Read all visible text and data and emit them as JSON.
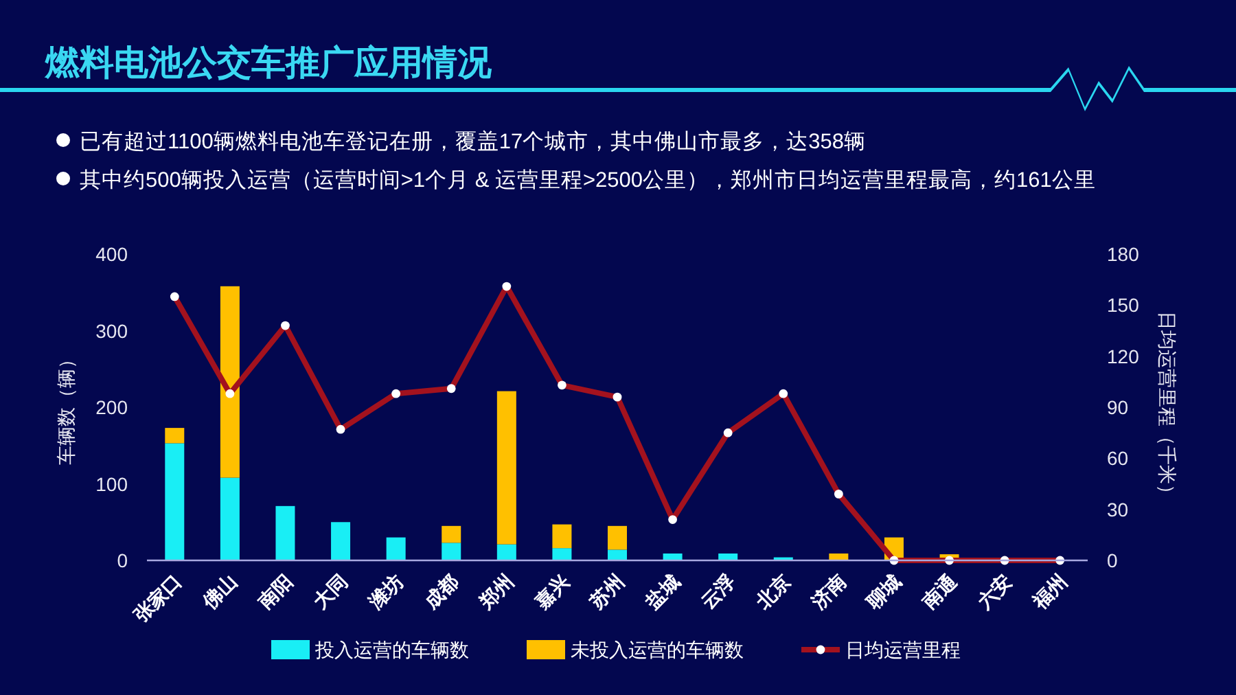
{
  "chart_data": {
    "type": "bar",
    "title": "燃料电池公交车推广应用情况",
    "annotations": [
      "已有超过1100辆燃料电池车登记在册，覆盖17个城市，其中佛山市最多，达358辆",
      "其中约500辆投入运营（运营时间>1个月 & 运营里程>2500公里），郑州市日均运营里程最高，约161公里"
    ],
    "categories": [
      "张家口",
      "佛山",
      "南阳",
      "大同",
      "潍坊",
      "成都",
      "郑州",
      "嘉兴",
      "苏州",
      "盐城",
      "云浮",
      "北京",
      "济南",
      "聊城",
      "南通",
      "六安",
      "福州"
    ],
    "series": [
      {
        "name": "投入运营的车辆数",
        "color": "#19eef5",
        "values": [
          153,
          108,
          71,
          50,
          30,
          23,
          21,
          16,
          14,
          9,
          9,
          4,
          0,
          0,
          0,
          0,
          0
        ]
      },
      {
        "name": "未投入运营的车辆数",
        "color": "#ffc000",
        "values": [
          20,
          250,
          0,
          0,
          0,
          22,
          200,
          31,
          31,
          0,
          0,
          0,
          9,
          30,
          8,
          0,
          0
        ]
      },
      {
        "name": "日均运营里程",
        "type": "line",
        "axis": "y2",
        "color": "#a3121e",
        "values": [
          155,
          98,
          138,
          77,
          98,
          101,
          161,
          103,
          96,
          24,
          75,
          98,
          39,
          0,
          0,
          0,
          0
        ]
      }
    ],
    "stacked": true,
    "ylabel": "车辆数（辆）",
    "y2label": "日均运营里程（千米）",
    "ylim": [
      0,
      400
    ],
    "yticks": [
      0,
      100,
      200,
      300,
      400
    ],
    "y2lim": [
      0,
      180
    ],
    "y2ticks": [
      0,
      30,
      60,
      90,
      120,
      150,
      180
    ],
    "legend": "bottom",
    "marker": "circle"
  }
}
